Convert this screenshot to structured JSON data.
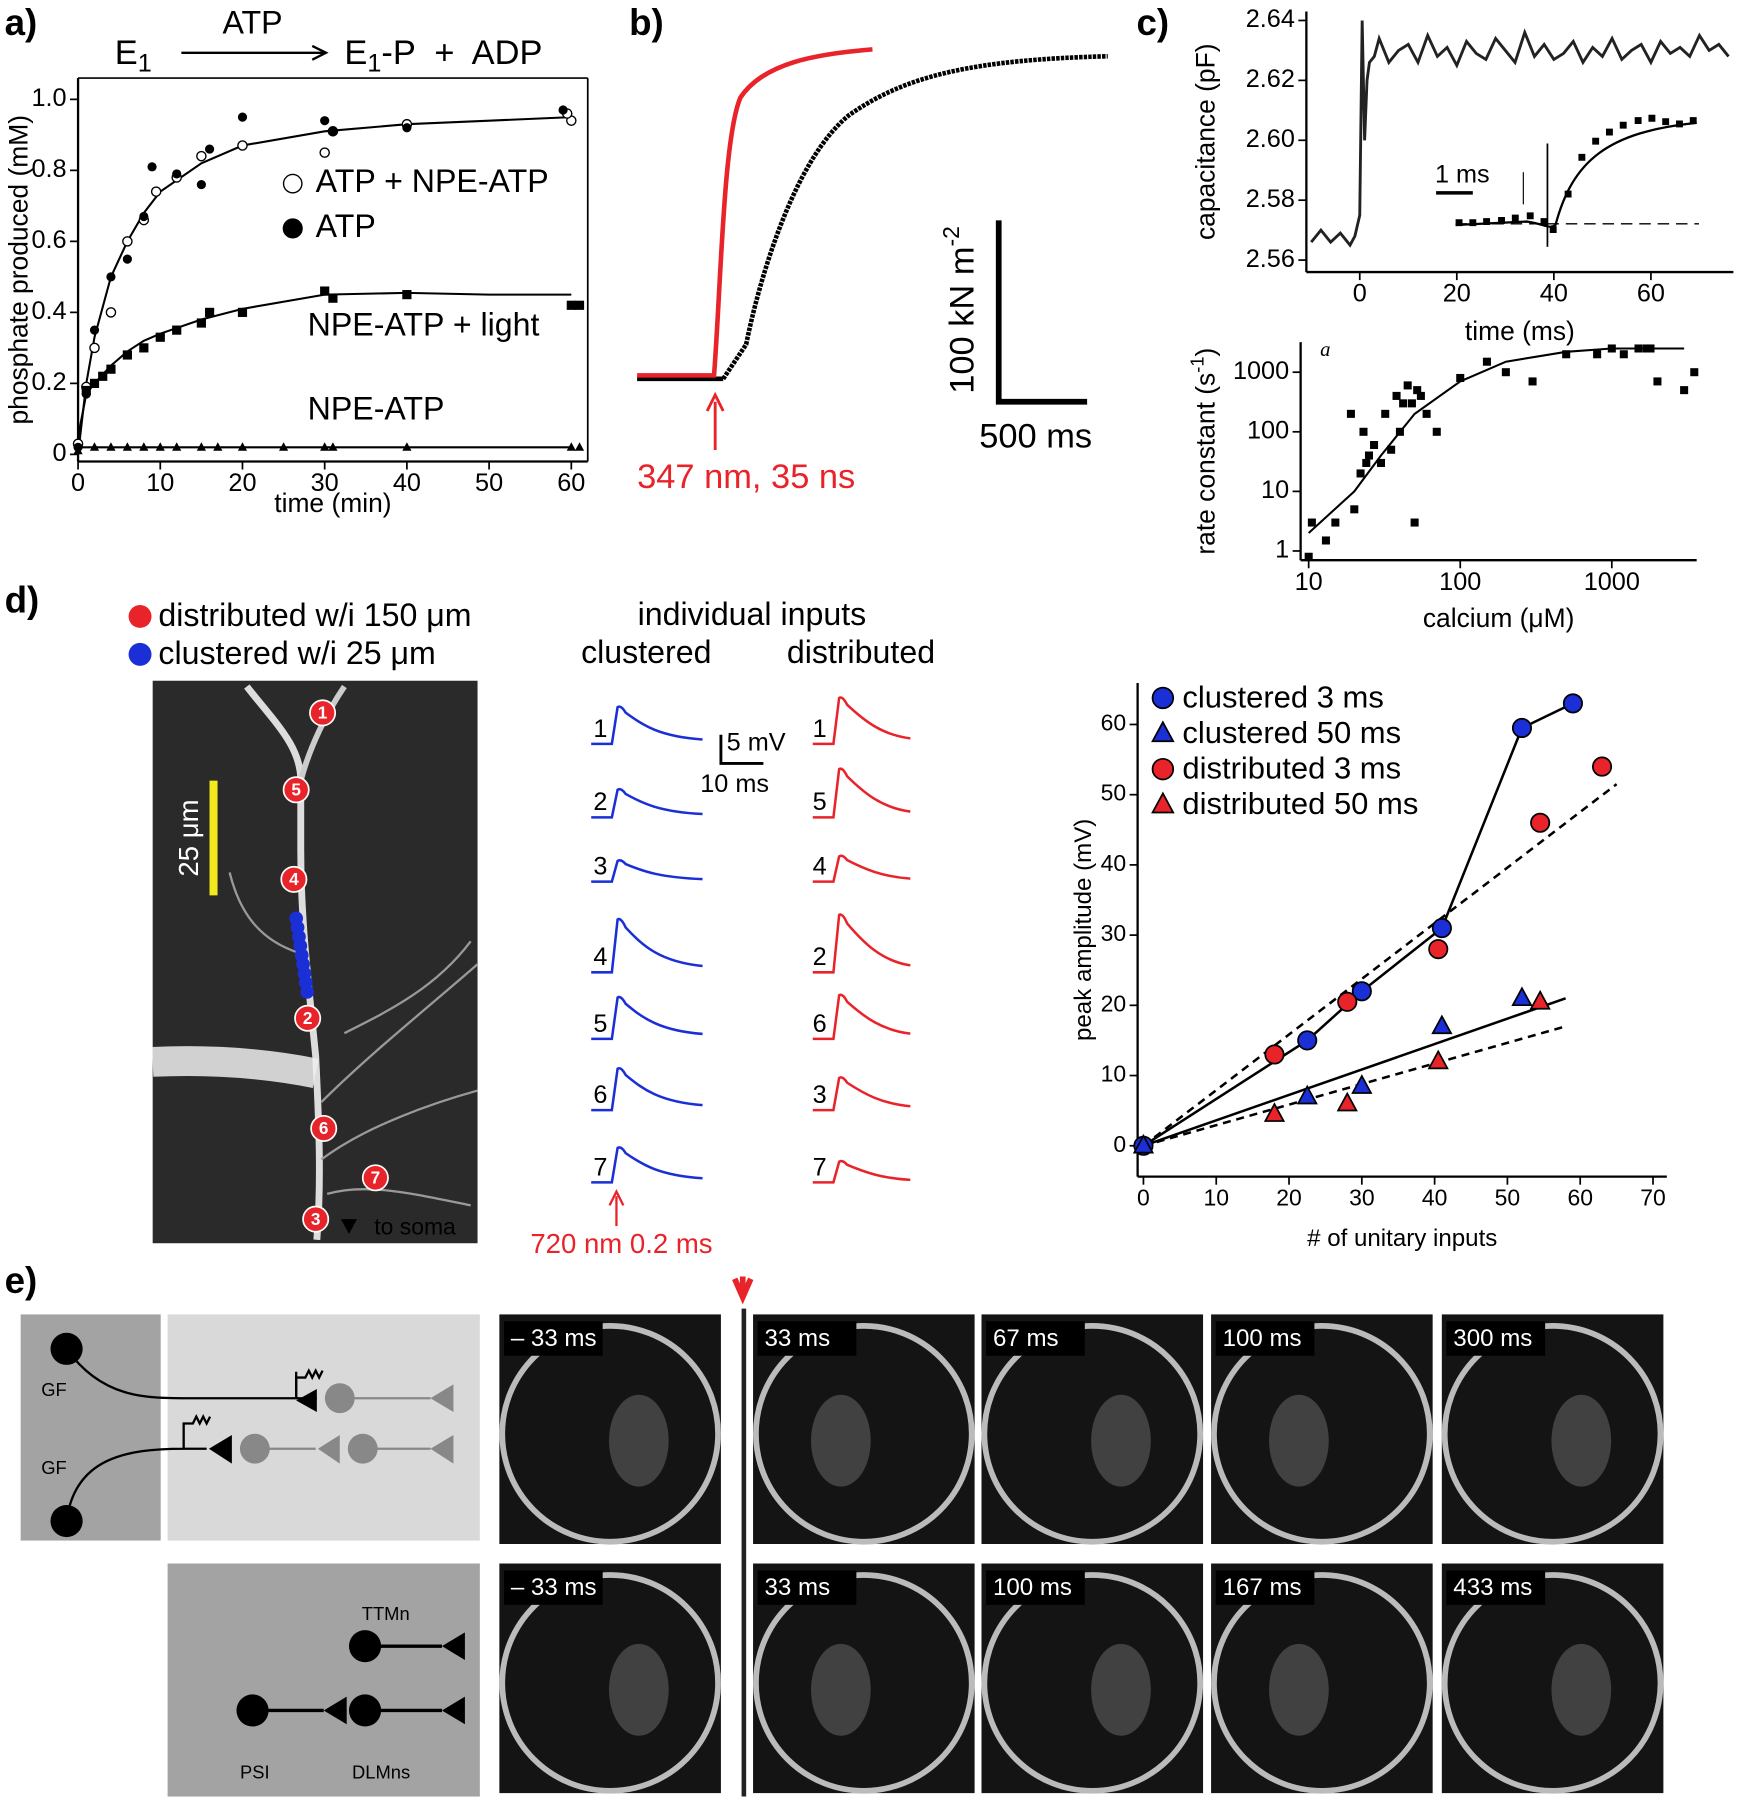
{
  "panel_labels": [
    "a)",
    "b)",
    "c)",
    "d)",
    "e)"
  ],
  "chart_data": [
    {
      "type": "scatter",
      "xlabel": "time (min)",
      "ylabel": "phosphate produced (mM)",
      "xlim": [
        0,
        62
      ],
      "ylim": [
        -0.02,
        1.06
      ],
      "xticks": [
        0,
        10,
        20,
        30,
        40,
        50,
        60
      ],
      "yticks": [
        0,
        0.2,
        0.4,
        0.6,
        0.8,
        {
          "value": 1,
          "label": "1.0"
        }
      ],
      "fit_x": [
        0,
        1,
        2,
        4,
        6,
        8,
        10,
        15,
        20,
        30,
        40,
        50,
        60
      ],
      "series": [
        {
          "name": "ATP + NPE-ATP",
          "marker": "circle-open",
          "color": "#000000",
          "x": [
            0,
            1,
            2,
            4,
            6,
            8,
            9.5,
            12,
            15,
            20,
            30,
            31,
            40,
            60,
            59.5
          ],
          "values": [
            0.03,
            0.19,
            0.3,
            0.4,
            0.6,
            0.66,
            0.74,
            0.78,
            0.84,
            0.87,
            0.85,
            0.91,
            0.93,
            0.94,
            0.96
          ],
          "fit_values": [
            0,
            0.2,
            0.33,
            0.5,
            0.6,
            0.68,
            0.74,
            0.82,
            0.87,
            0.91,
            0.93,
            0.94,
            0.95
          ]
        },
        {
          "name": "ATP",
          "marker": "circle",
          "color": "#000000",
          "x": [
            0,
            1,
            2,
            4,
            6,
            8,
            9,
            12,
            15,
            16,
            20,
            30,
            31,
            40,
            59
          ],
          "values": [
            0.02,
            0.17,
            0.35,
            0.5,
            0.55,
            0.67,
            0.81,
            0.79,
            0.76,
            0.86,
            0.95,
            0.94,
            0.91,
            0.92,
            0.97
          ]
        },
        {
          "name": "NPE-ATP + light",
          "marker": "square",
          "color": "#000000",
          "x": [
            1,
            2,
            3,
            4,
            6,
            8,
            10,
            12,
            15,
            16,
            20,
            30,
            31,
            40,
            60,
            61
          ],
          "values": [
            0.18,
            0.2,
            0.22,
            0.24,
            0.28,
            0.3,
            0.33,
            0.35,
            0.37,
            0.4,
            0.4,
            0.46,
            0.44,
            0.45,
            0.42,
            0.42
          ],
          "fit_values": [
            0.05,
            0.17,
            0.2,
            0.25,
            0.29,
            0.32,
            0.34,
            0.38,
            0.41,
            0.45,
            0.455,
            0.45,
            0.45
          ]
        },
        {
          "name": "NPE-ATP",
          "marker": "triangle",
          "color": "#000000",
          "x": [
            0,
            2,
            4,
            6,
            8,
            10,
            12,
            15,
            17,
            20,
            25,
            30,
            31,
            40,
            60,
            61
          ],
          "values": [
            0.01,
            0.02,
            0.02,
            0.02,
            0.02,
            0.02,
            0.02,
            0.02,
            0.02,
            0.02,
            0.02,
            0.02,
            0.02,
            0.02,
            0.02,
            0.02
          ],
          "fit_values": [
            0.02,
            0.02,
            0.02,
            0.02,
            0.02,
            0.02,
            0.02,
            0.02,
            0.02,
            0.02,
            0.02,
            0.02,
            0.02
          ]
        }
      ]
    },
    {
      "type": "line",
      "xlabel": "time (ms)",
      "ylabel": "capacitance (pF)",
      "xlim": [
        -11,
        77
      ],
      "ylim": [
        2.556,
        2.643
      ],
      "xticks": [
        0,
        20,
        40,
        60
      ],
      "yticks": [
        2.56,
        2.58,
        {
          "value": 2.6,
          "label": "2.60"
        },
        2.62,
        2.64
      ],
      "series": [
        {
          "name": "capacitance",
          "color": "#222222",
          "x": [
            -10,
            -8,
            -6,
            -4,
            -2,
            -1,
            0,
            0.5,
            1,
            1.5,
            2,
            3,
            4,
            6,
            8,
            10,
            12,
            14,
            16,
            18,
            20,
            22,
            24,
            26,
            28,
            30,
            32,
            34,
            36,
            38,
            40,
            42,
            44,
            46,
            48,
            50,
            52,
            54,
            56,
            58,
            60,
            62,
            64,
            66,
            68,
            70,
            72,
            74,
            76
          ],
          "values": [
            2.566,
            2.57,
            2.566,
            2.569,
            2.565,
            2.568,
            2.575,
            2.64,
            2.6,
            2.62,
            2.626,
            2.628,
            2.634,
            2.626,
            2.63,
            2.632,
            2.626,
            2.635,
            2.628,
            2.631,
            2.625,
            2.633,
            2.629,
            2.627,
            2.634,
            2.63,
            2.626,
            2.636,
            2.628,
            2.632,
            2.627,
            2.629,
            2.633,
            2.626,
            2.631,
            2.628,
            2.634,
            2.627,
            2.63,
            2.632,
            2.626,
            2.633,
            2.629,
            2.631,
            2.628,
            2.635,
            2.63,
            2.632,
            2.628
          ]
        }
      ],
      "inset_scale": "1 ms"
    },
    {
      "type": "scatter",
      "xscale": "log",
      "yscale": "log",
      "xlabel": "calcium (μM)",
      "ylabel": "rate constant (s",
      "ylabel_sup": "-1",
      "ylabel_end": ")",
      "annotation": "a",
      "xlim": [
        8.85,
        3630
      ],
      "ylim": [
        0.7,
        3200
      ],
      "xticks": [
        10,
        100,
        1000
      ],
      "yticks": [
        1,
        10,
        100,
        1000
      ],
      "fit_x": [
        10,
        20,
        30,
        50,
        100,
        200,
        500,
        1000,
        2000,
        3000
      ],
      "series": [
        {
          "name": "rate constant",
          "marker": "square",
          "color": "#000000",
          "x": [
            10,
            10.5,
            13,
            15,
            19,
            20,
            22,
            23,
            24,
            25,
            27,
            30,
            32,
            35,
            38,
            40,
            42,
            45,
            48,
            50,
            52,
            55,
            60,
            70,
            100,
            150,
            200,
            300,
            500,
            800,
            1000,
            1200,
            1500,
            1700,
            1800,
            2000,
            3000,
            3500
          ],
          "values": [
            0.8,
            3,
            1.5,
            3,
            200,
            5,
            20,
            100,
            30,
            40,
            60,
            30,
            200,
            50,
            400,
            100,
            300,
            600,
            300,
            3,
            500,
            400,
            200,
            100,
            800,
            1500,
            1000,
            700,
            2000,
            2000,
            2500,
            2000,
            2500,
            2500,
            2500,
            700,
            500,
            1000
          ],
          "fit_values": [
            2,
            10,
            40,
            200,
            700,
            1500,
            2200,
            2500,
            2500,
            2500
          ]
        }
      ]
    },
    {
      "type": "scatter",
      "xlabel": "# of unitary inputs",
      "ylabel": "peak amplitude (mV)",
      "xlim": [
        -0.8,
        71.9
      ],
      "ylim": [
        -4.4,
        65.9
      ],
      "xticks": [
        0,
        10,
        20,
        30,
        40,
        50,
        60,
        70
      ],
      "yticks": [
        0,
        10,
        20,
        30,
        40,
        50,
        60
      ],
      "series": [
        {
          "name": "clustered 3 ms",
          "marker": "circle",
          "color": "#1a2fd6",
          "connect": true,
          "x": [
            0,
            22.5,
            30,
            41,
            52,
            59
          ],
          "values": [
            0,
            15,
            22,
            31,
            59.5,
            63
          ]
        },
        {
          "name": "clustered 50 ms",
          "marker": "triangle",
          "color": "#1a2fd6",
          "x": [
            0,
            22.5,
            30,
            41,
            52
          ],
          "values": [
            0,
            7,
            8.5,
            17,
            21
          ],
          "trend_x": [
            0,
            58
          ],
          "trend_values": [
            0,
            21
          ],
          "dashed": false
        },
        {
          "name": "distributed 3 ms",
          "marker": "circle",
          "color": "#e8232a",
          "x": [
            18,
            28,
            40.5,
            54.5,
            63
          ],
          "values": [
            13,
            20.5,
            28,
            46,
            54
          ],
          "trend_x": [
            0,
            65
          ],
          "trend_values": [
            0,
            51.5
          ],
          "dashed": true
        },
        {
          "name": "distributed 50 ms",
          "marker": "triangle",
          "color": "#e8232a",
          "x": [
            18,
            28,
            40.5,
            54.5
          ],
          "values": [
            4.5,
            6,
            12,
            20.5
          ],
          "trend_x": [
            0,
            58
          ],
          "trend_values": [
            0,
            17
          ],
          "dashed": true
        }
      ]
    }
  ],
  "panel_a": {
    "reactant": "E",
    "reactant_sub": "1",
    "arrow_label": "ATP",
    "product": "E",
    "product_sub": "1",
    "product_rest": "-P  +  ADP"
  },
  "panel_b": {
    "scale_y": "100 kN m",
    "scale_y_sup": "-2",
    "scale_x": "500 ms",
    "flash": "347 nm, 35 ns"
  },
  "panel_d": {
    "legend": [
      "distributed w/i 150 μm",
      "clustered w/i 25 μm"
    ],
    "scale_bar": "25 μm",
    "soma": "to soma",
    "sites": [
      "1",
      "5",
      "4",
      "2",
      "6",
      "7",
      "3"
    ],
    "traces_title": "individual inputs",
    "columns": [
      "clustered",
      "distributed"
    ],
    "clustered_order": [
      "1",
      "2",
      "3",
      "4",
      "5",
      "6",
      "7"
    ],
    "distributed_order": [
      "1",
      "5",
      "4",
      "2",
      "6",
      "3",
      "7"
    ],
    "trace_scale_y": "5 mV",
    "trace_scale_x": "10 ms",
    "flash": "720 nm 0.2 ms"
  },
  "panel_e": {
    "neurons": [
      "GF",
      "GF",
      "TTMn",
      "PSI",
      "DLMns"
    ],
    "row1_times": [
      "– 33 ms",
      "33 ms",
      "67 ms",
      "100 ms",
      "300 ms"
    ],
    "row2_times": [
      "– 33 ms",
      "33 ms",
      "100 ms",
      "167 ms",
      "433 ms"
    ]
  }
}
